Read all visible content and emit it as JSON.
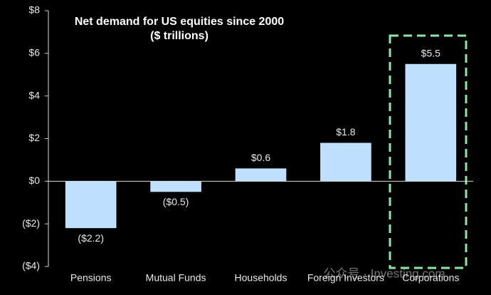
{
  "chart_data": {
    "type": "bar",
    "title": "Net demand for US equities since 2000",
    "subtitle": "($ trillions)",
    "categories": [
      "Pensions",
      "Mutual Funds",
      "Households",
      "Foreign Investors",
      "Corporations"
    ],
    "values": [
      -2.2,
      -0.5,
      0.6,
      1.8,
      5.5
    ],
    "value_labels": [
      "($2.2)",
      "($0.5)",
      "$0.6",
      "$1.8",
      "$5.5"
    ],
    "color": "#bfe0ff",
    "ylim": [
      -4,
      8
    ],
    "yticks": [
      {
        "value": -4,
        "label": "($4)"
      },
      {
        "value": -2,
        "label": "($2)"
      },
      {
        "value": 0,
        "label": "$0"
      },
      {
        "value": 2,
        "label": "$2"
      },
      {
        "value": 4,
        "label": "$4"
      },
      {
        "value": 6,
        "label": "$6"
      },
      {
        "value": 8,
        "label": "$8"
      }
    ],
    "grid": false,
    "watermark": "公众号 · Investing.com"
  }
}
